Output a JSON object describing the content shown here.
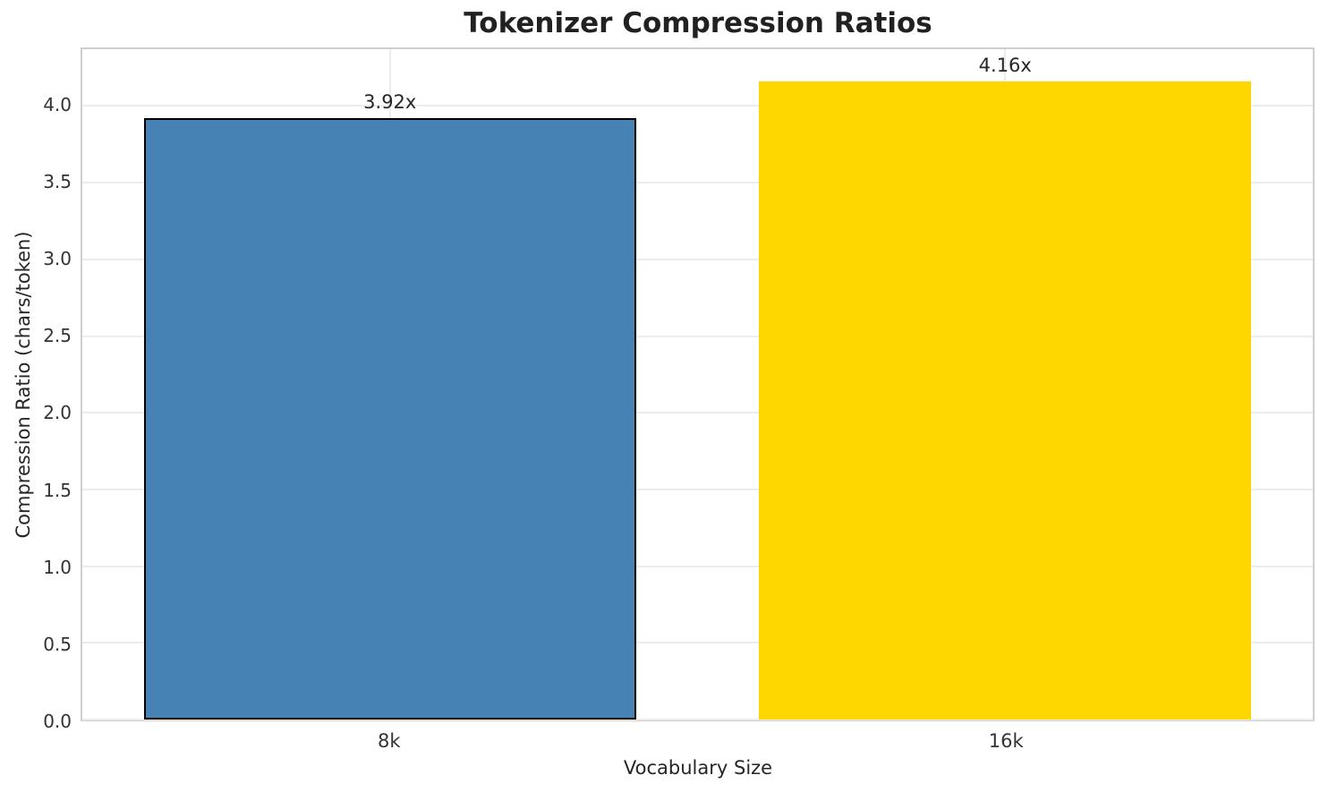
{
  "chart_data": {
    "type": "bar",
    "title": "Tokenizer Compression Ratios",
    "xlabel": "Vocabulary Size",
    "ylabel": "Compression Ratio (chars/token)",
    "categories": [
      "8k",
      "16k"
    ],
    "values": [
      3.92,
      4.16
    ],
    "bar_labels": [
      "3.92x",
      "4.16x"
    ],
    "bar_colors": [
      "#4682B4",
      "#FFD700"
    ],
    "bar_edge_colors": [
      "#000000",
      "none"
    ],
    "bar_width": 0.8,
    "ylim": [
      0,
      4.37
    ],
    "ytick_labels": [
      "0.0",
      "0.5",
      "1.0",
      "1.5",
      "2.0",
      "2.5",
      "3.0",
      "3.5",
      "4.0"
    ],
    "grid": true,
    "legend": null,
    "colors": {
      "title_text": "#212121",
      "tick_text": "#333333",
      "label_text": "#262626",
      "gridline": "#ececec",
      "spine": "#cfcfcf"
    }
  }
}
